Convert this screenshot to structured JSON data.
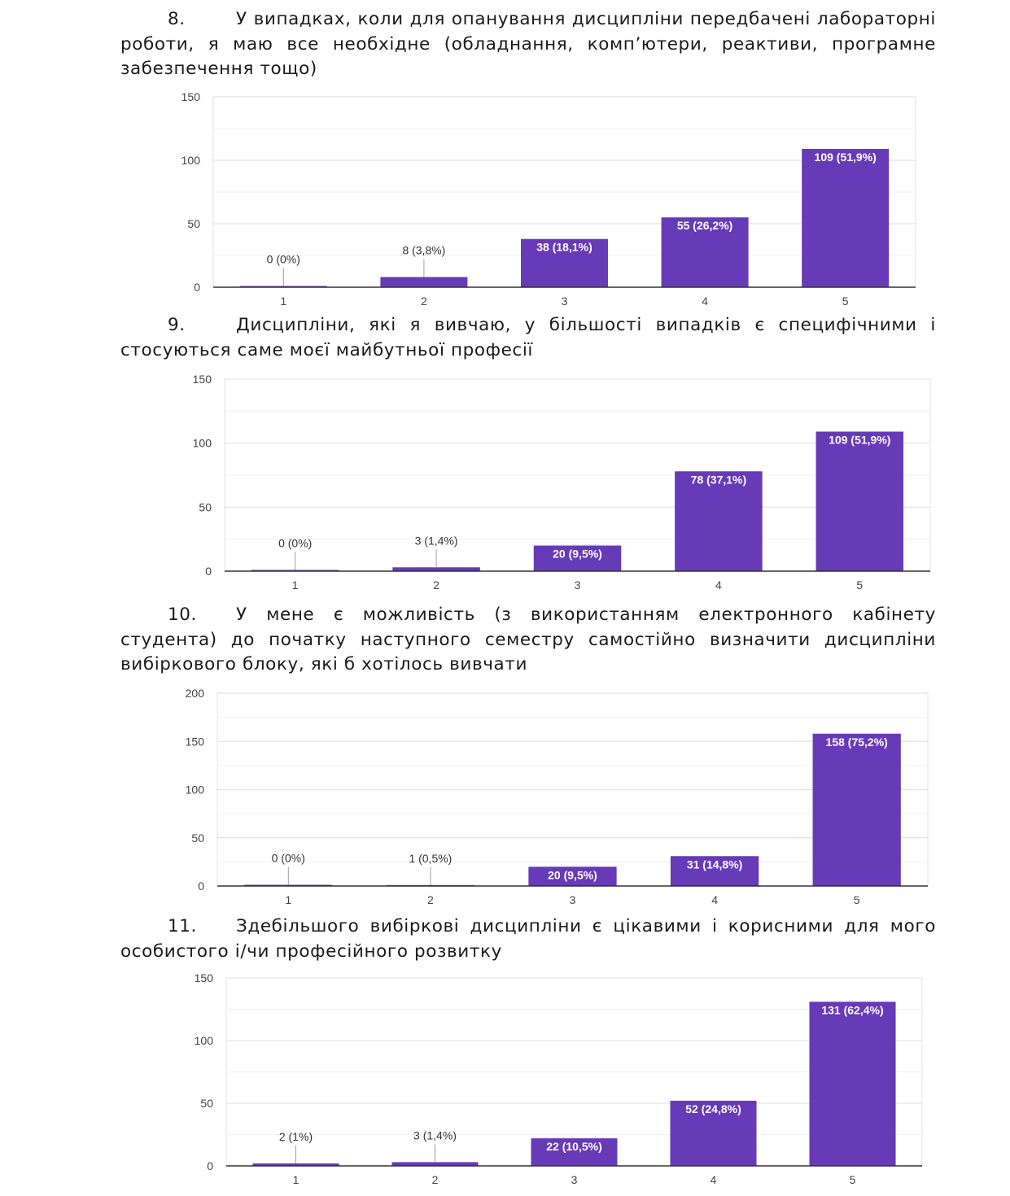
{
  "colors": {
    "bar": "#673AB7",
    "grid": "#e3e3e3",
    "axis": "#333333",
    "leader": "#9e9e9e"
  },
  "questions": [
    {
      "number": "8.",
      "text": "У випадках, коли для опанування дисципліни передбачені лабораторні роботи, я маю все необхідне (обладнання, комп’ютери, реактиви, програмне забезпечення тощо)"
    },
    {
      "number": "9.",
      "text": "Дисципліни, які я вивчаю, у більшості випадків є специфічними і стосуються саме моєї майбутньої професії"
    },
    {
      "number": "10.",
      "text": "У мене є можливість (з використанням електронного кабінету студента) до початку наступного семестру самостійно визначити дисципліни вибіркового блоку, які б хотілось вивчати"
    },
    {
      "number": "11.",
      "text": "Здебільшого вибіркові дисципліни є цікавими і корисними для мого особистого і/чи професійного розвитку"
    }
  ],
  "chart_data": [
    {
      "type": "bar",
      "categories": [
        "1",
        "2",
        "3",
        "4",
        "5"
      ],
      "values": [
        0,
        8,
        38,
        55,
        109
      ],
      "data_labels": [
        "0 (0%)",
        "8 (3,8%)",
        "38 (18,1%)",
        "55 (26,2%)",
        "109 (51,9%)"
      ],
      "y_ticks": [
        "0",
        "50",
        "100",
        "150"
      ],
      "ylim": [
        0,
        150
      ],
      "grid": true,
      "title": "",
      "xlabel": "",
      "ylabel": ""
    },
    {
      "type": "bar",
      "categories": [
        "1",
        "2",
        "3",
        "4",
        "5"
      ],
      "values": [
        0,
        3,
        20,
        78,
        109
      ],
      "data_labels": [
        "0 (0%)",
        "3 (1,4%)",
        "20 (9,5%)",
        "78 (37,1%)",
        "109 (51,9%)"
      ],
      "y_ticks": [
        "0",
        "50",
        "100",
        "150"
      ],
      "ylim": [
        0,
        150
      ],
      "grid": true,
      "title": "",
      "xlabel": "",
      "ylabel": ""
    },
    {
      "type": "bar",
      "categories": [
        "1",
        "2",
        "3",
        "4",
        "5"
      ],
      "values": [
        0,
        1,
        20,
        31,
        158
      ],
      "data_labels": [
        "0 (0%)",
        "1 (0,5%)",
        "20 (9,5%)",
        "31 (14,8%)",
        "158 (75,2%)"
      ],
      "y_ticks": [
        "0",
        "50",
        "100",
        "150",
        "200"
      ],
      "ylim": [
        0,
        200
      ],
      "grid": true,
      "title": "",
      "xlabel": "",
      "ylabel": ""
    },
    {
      "type": "bar",
      "categories": [
        "1",
        "2",
        "3",
        "4",
        "5"
      ],
      "values": [
        2,
        3,
        22,
        52,
        131
      ],
      "data_labels": [
        "2 (1%)",
        "3 (1,4%)",
        "22 (10,5%)",
        "52 (24,8%)",
        "131 (62,4%)"
      ],
      "y_ticks": [
        "0",
        "50",
        "100",
        "150"
      ],
      "ylim": [
        0,
        150
      ],
      "grid": true,
      "title": "",
      "xlabel": "",
      "ylabel": ""
    }
  ]
}
